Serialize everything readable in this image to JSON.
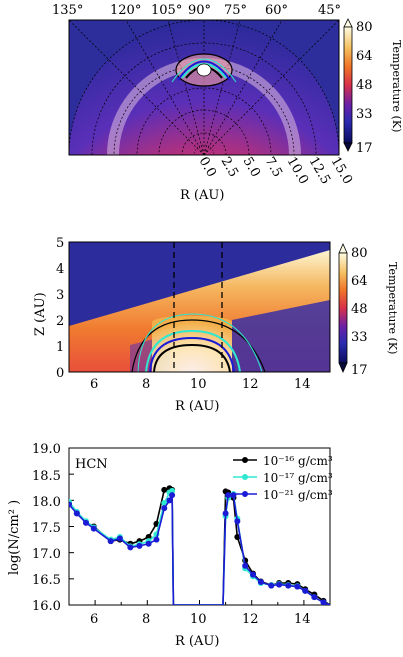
{
  "chart_data": [
    {
      "type": "heatmap",
      "projection": "half-disk (polar)",
      "angle_ticks_deg": [
        "135°",
        "120°",
        "105°",
        "90°",
        "75°",
        "60°",
        "45°"
      ],
      "radius_ticks": [
        "0.0",
        "2.5",
        "5.0",
        "7.5",
        "10.0",
        "12.5",
        "15.0"
      ],
      "xlabel": "R (AU)",
      "colorbar": {
        "label": "Temperature (K)",
        "ticks": [
          "80",
          "64",
          "48",
          "33",
          "17"
        ],
        "range": [
          17,
          80
        ]
      }
    },
    {
      "type": "heatmap",
      "xlabel": "R (AU)",
      "ylabel": "Z (AU)",
      "xlim": [
        5,
        15
      ],
      "ylim": [
        0,
        5
      ],
      "xticks": [
        "6",
        "8",
        "10",
        "12",
        "14"
      ],
      "yticks": [
        "0",
        "1",
        "2",
        "3",
        "4",
        "5"
      ],
      "dashed_lines_x": [
        9.0,
        10.85
      ],
      "colorbar": {
        "label": "Temperature (K)",
        "ticks": [
          "80",
          "64",
          "48",
          "33",
          "17"
        ],
        "range": [
          17,
          80
        ]
      }
    },
    {
      "type": "line",
      "annotation": "HCN",
      "xlabel": "R (AU)",
      "ylabel": "log(N/cm² )",
      "xlim": [
        5,
        15
      ],
      "ylim": [
        16.0,
        19.0
      ],
      "xticks": [
        "6",
        "8",
        "10",
        "12",
        "14"
      ],
      "yticks": [
        "16.0",
        "16.5",
        "17.0",
        "17.5",
        "18.0",
        "18.5",
        "19.0"
      ],
      "legend_position": "top-right",
      "series": [
        {
          "name": "10⁻¹⁶ g/cm³",
          "color": "#000000",
          "x": [
            5.0,
            5.3,
            5.65,
            5.95,
            6.6,
            6.95,
            7.35,
            7.7,
            8.05,
            8.35,
            8.65,
            8.85,
            8.95,
            9.0,
            10.9,
            11.0,
            11.1,
            11.3,
            11.45,
            11.75,
            12.05,
            12.35,
            12.75,
            13.05,
            13.4,
            13.75,
            14.05,
            14.4,
            14.75,
            15.0
          ],
          "y": [
            17.95,
            17.75,
            17.58,
            17.5,
            17.22,
            17.25,
            17.17,
            17.22,
            17.3,
            17.55,
            18.2,
            18.23,
            18.2,
            16.0,
            16.0,
            18.17,
            18.15,
            18.05,
            17.3,
            16.85,
            16.6,
            16.45,
            16.38,
            16.42,
            16.42,
            16.4,
            16.3,
            16.2,
            16.08,
            16.0
          ]
        },
        {
          "name": "10⁻¹⁷ g/cm³",
          "color": "#2ee8d0",
          "x": [
            5.0,
            5.3,
            5.65,
            5.95,
            6.6,
            6.95,
            7.35,
            7.7,
            8.05,
            8.35,
            8.65,
            8.85,
            8.95,
            9.0,
            10.9,
            11.0,
            11.1,
            11.3,
            11.45,
            11.75,
            12.05,
            12.35,
            12.75,
            13.05,
            13.4,
            13.75,
            14.05,
            14.4,
            14.75,
            15.0
          ],
          "y": [
            17.97,
            17.78,
            17.6,
            17.48,
            17.25,
            17.3,
            17.12,
            17.16,
            17.22,
            17.35,
            17.95,
            18.15,
            18.18,
            16.0,
            16.0,
            17.7,
            18.05,
            18.12,
            17.65,
            16.7,
            16.55,
            16.42,
            16.38,
            16.4,
            16.38,
            16.36,
            16.27,
            16.15,
            16.05,
            16.0
          ]
        },
        {
          "name": "10⁻²¹ g/cm³",
          "color": "#1b1bd6",
          "x": [
            5.0,
            5.3,
            5.65,
            5.95,
            6.6,
            6.95,
            7.35,
            7.7,
            8.05,
            8.35,
            8.65,
            8.85,
            8.95,
            9.0,
            10.9,
            11.0,
            11.1,
            11.3,
            11.45,
            11.75,
            12.05,
            12.35,
            12.75,
            13.05,
            13.4,
            13.75,
            14.05,
            14.4,
            14.75,
            15.0
          ],
          "y": [
            17.92,
            17.75,
            17.57,
            17.46,
            17.22,
            17.27,
            17.1,
            17.13,
            17.17,
            17.25,
            17.85,
            18.0,
            18.1,
            16.0,
            16.0,
            17.75,
            18.1,
            18.1,
            17.6,
            16.75,
            16.58,
            16.44,
            16.37,
            16.39,
            16.37,
            16.35,
            16.27,
            16.15,
            16.05,
            16.0
          ]
        }
      ]
    }
  ]
}
